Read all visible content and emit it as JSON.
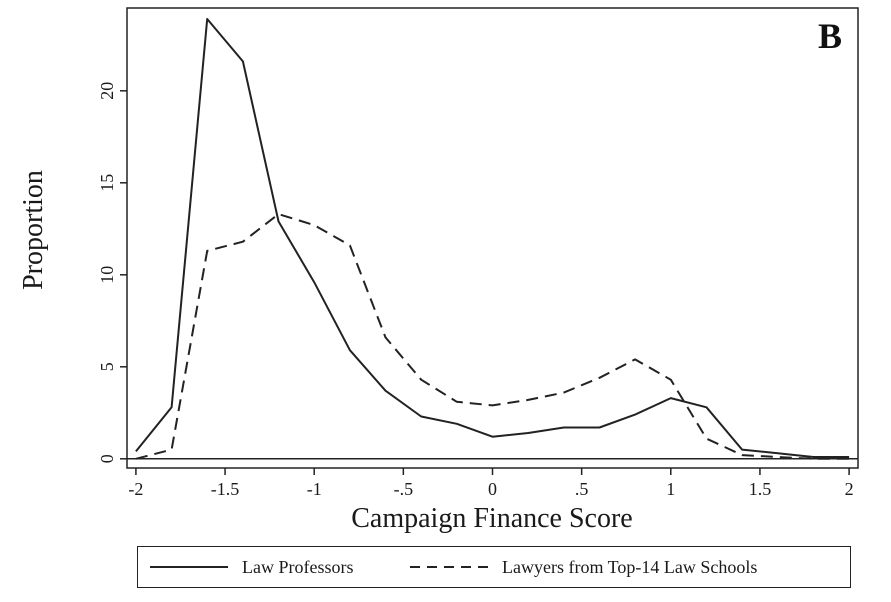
{
  "panel_label": "B",
  "chart_data": {
    "type": "line",
    "xlabel": "Campaign Finance Score",
    "ylabel": "Proportion",
    "xlim": [
      -2.05,
      2.05
    ],
    "ylim": [
      -0.5,
      24.5
    ],
    "xticks": [
      {
        "value": -2,
        "label": "-2"
      },
      {
        "value": -1.5,
        "label": "-1.5"
      },
      {
        "value": -1,
        "label": "-1"
      },
      {
        "value": -0.5,
        "label": "-.5"
      },
      {
        "value": 0,
        "label": "0"
      },
      {
        "value": 0.5,
        "label": ".5"
      },
      {
        "value": 1,
        "label": "1"
      },
      {
        "value": 1.5,
        "label": "1.5"
      },
      {
        "value": 2,
        "label": "2"
      }
    ],
    "yticks": [
      {
        "value": 0,
        "label": "0"
      },
      {
        "value": 5,
        "label": "5"
      },
      {
        "value": 10,
        "label": "10"
      },
      {
        "value": 15,
        "label": "15"
      },
      {
        "value": 20,
        "label": "20"
      }
    ],
    "grid": false,
    "legend_position": "bottom",
    "series": [
      {
        "name": "Law Professors",
        "style": "solid",
        "color": "#222222",
        "x": [
          -2,
          -1.8,
          -1.6,
          -1.4,
          -1.2,
          -1.0,
          -0.8,
          -0.6,
          -0.4,
          -0.2,
          0,
          0.2,
          0.4,
          0.6,
          0.8,
          1.0,
          1.2,
          1.4,
          1.6,
          1.8,
          2.0
        ],
        "y": [
          0.4,
          2.8,
          23.9,
          21.6,
          12.9,
          9.6,
          5.9,
          3.7,
          2.3,
          1.9,
          1.2,
          1.4,
          1.7,
          1.7,
          2.4,
          3.3,
          2.8,
          0.5,
          0.3,
          0.1,
          0.1
        ]
      },
      {
        "name": "Lawyers from Top-14 Law Schools",
        "style": "dashed",
        "color": "#222222",
        "x": [
          -2,
          -1.8,
          -1.6,
          -1.4,
          -1.2,
          -1.0,
          -0.8,
          -0.6,
          -0.4,
          -0.2,
          0,
          0.2,
          0.4,
          0.6,
          0.8,
          1.0,
          1.2,
          1.4,
          1.6,
          1.8,
          2.0
        ],
        "y": [
          0.0,
          0.5,
          11.3,
          11.8,
          13.3,
          12.7,
          11.6,
          6.6,
          4.3,
          3.1,
          2.9,
          3.2,
          3.6,
          4.4,
          5.4,
          4.3,
          1.1,
          0.2,
          0.1,
          0.0,
          0.0
        ]
      }
    ]
  }
}
